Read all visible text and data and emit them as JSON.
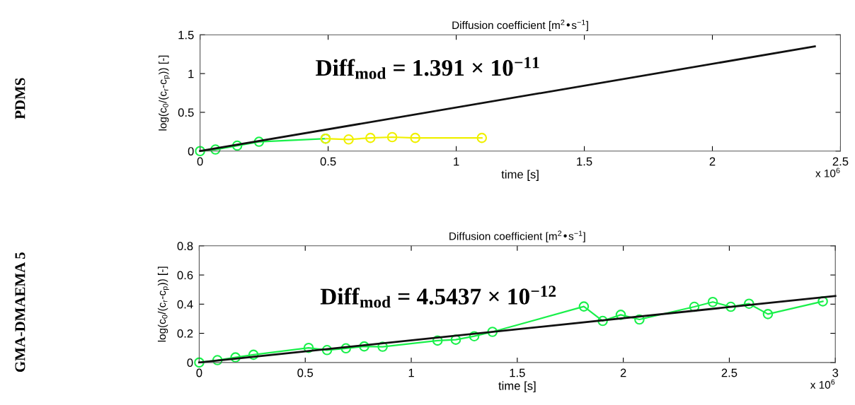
{
  "chart_data": [
    {
      "type": "line",
      "title": "Diffusion coefficient [m$^{2}$•s$^{−1}$]",
      "xlabel": "time [s]",
      "ylabel": "log(c$_{0}$/(c$_{r}$-c$_{p}$)) [-]",
      "annotations": [
        "PDMS",
        "Diff$_{mod}$ = 1.391 × 10$^{−11}$",
        "x 10$^{6}$"
      ],
      "xlim": [
        0,
        2.5
      ],
      "ylim": [
        0,
        1.5
      ],
      "xticks": [
        0,
        0.5,
        1,
        1.5,
        2,
        2.5
      ],
      "yticks": [
        0,
        0.5,
        1,
        1.5
      ],
      "grid": false,
      "legend": false,
      "series": [
        {
          "color": "#19f04a",
          "marker": "circle",
          "x": [
            0,
            0.06,
            0.145,
            0.23,
            0.49
          ],
          "values": [
            0.0,
            0.02,
            0.07,
            0.12,
            0.16
          ]
        },
        {
          "color": "#f0f000",
          "marker": "circle",
          "x": [
            0.49,
            0.58,
            0.665,
            0.75,
            0.84,
            1.1
          ],
          "values": [
            0.16,
            0.15,
            0.17,
            0.18,
            0.17,
            0.17
          ]
        },
        {
          "color": "#111111",
          "marker": "none",
          "x": [
            0,
            2.4
          ],
          "values": [
            0,
            1.35
          ]
        }
      ]
    },
    {
      "type": "line",
      "title": "Diffusion coefficient [m$^{2}$•s$^{−1}$]",
      "xlabel": "time [s]",
      "ylabel": "log(c$_{0}$/(c$_{r}$-c$_{p}$)) [-]",
      "annotations": [
        "GMA-DMAEMA 5",
        "Diff$_{mod}$ = 4.5437 × 10$^{−12}$",
        "x 10$^{6}$"
      ],
      "xlim": [
        0,
        3
      ],
      "ylim": [
        0,
        0.8
      ],
      "xticks": [
        0,
        0.5,
        1,
        1.5,
        2,
        2.5,
        3
      ],
      "yticks": [
        0,
        0.2,
        0.4,
        0.6,
        0.8
      ],
      "grid": false,
      "legend": false,
      "series": [
        {
          "color": "#19f04a",
          "marker": "circle",
          "x": [
            0,
            0.086,
            0.171,
            0.256,
            0.516,
            0.603,
            0.692,
            0.778,
            0.865,
            1.124,
            1.21,
            1.297,
            1.383,
            1.814,
            1.903,
            1.988,
            2.076,
            2.335,
            2.422,
            2.507,
            2.593,
            2.682,
            2.941
          ],
          "values": [
            0.0,
            0.016,
            0.035,
            0.053,
            0.1,
            0.085,
            0.097,
            0.11,
            0.108,
            0.15,
            0.156,
            0.18,
            0.21,
            0.384,
            0.285,
            0.327,
            0.295,
            0.382,
            0.415,
            0.382,
            0.403,
            0.332,
            0.419
          ]
        },
        {
          "color": "#111111",
          "marker": "none",
          "x": [
            0,
            3
          ],
          "values": [
            0,
            0.456
          ]
        }
      ]
    }
  ]
}
